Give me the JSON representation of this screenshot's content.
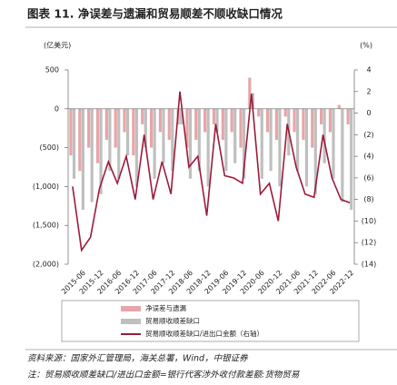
{
  "chart_data": {
    "type": "bar",
    "title": "图表 11. 净误差与遗漏和贸易顺差不顺收缺口情况",
    "y_label": "(亿美元)",
    "y2_label": "(%)",
    "categories": [
      null,
      "2015-06",
      null,
      "2015-12",
      null,
      "2016-06",
      null,
      "2016-12",
      null,
      "2017-06",
      null,
      "2017-12",
      null,
      "2018-06",
      null,
      "2018-12",
      null,
      "2019-06",
      null,
      "2019-12",
      null,
      "2020-06",
      null,
      "2020-12",
      null,
      "2021-06",
      null,
      "2021-12",
      null,
      "2022-06",
      null,
      "2022-12"
    ],
    "series": [
      {
        "name": "净误差与遗漏",
        "color": "#e6a5a8",
        "values": [
          -600,
          -800,
          -500,
          -700,
          -400,
          -500,
          -300,
          -600,
          -200,
          -500,
          -300,
          -400,
          -200,
          -500,
          -400,
          -300,
          -200,
          -400,
          -300,
          -500,
          400,
          -100,
          -300,
          -400,
          -100,
          -300,
          -400,
          -500,
          -200,
          -300,
          50,
          -200
        ]
      },
      {
        "name": "贸易顺收顺差缺口",
        "color": "#bfbfbf",
        "values": [
          -900,
          -1300,
          -1200,
          -1100,
          -800,
          -900,
          -600,
          -1000,
          -500,
          -900,
          -700,
          -800,
          -200,
          -900,
          -800,
          -1000,
          -300,
          -800,
          -700,
          -900,
          200,
          -900,
          -800,
          -1000,
          -600,
          -800,
          -1000,
          -1100,
          -700,
          -900,
          -1200,
          -1300
        ]
      },
      {
        "name": "贸易顺收顺差缺口/进出口金额（右轴）",
        "color": "#9b1b3b",
        "type": "line",
        "axis": "y2",
        "values": [
          -6.8,
          -12.7,
          -11.5,
          -7,
          -4.5,
          -6.5,
          -4,
          -8,
          -2,
          -8,
          -4.5,
          -7.5,
          2,
          -5,
          -4,
          -9.5,
          -1,
          -5.8,
          -6,
          -6.5,
          1.8,
          -7.5,
          -6.5,
          -10,
          -1,
          -5,
          -7.5,
          -7.8,
          -2,
          -6,
          -8,
          -8.3
        ]
      }
    ],
    "ylim": [
      -2000,
      500
    ],
    "yticks": [
      500,
      0,
      {
        "value": -500,
        "label": "(500)"
      },
      {
        "value": -1000,
        "label": "(1,000)"
      },
      {
        "value": -1500,
        "label": "(1,500)"
      },
      {
        "value": -2000,
        "label": "(2,000)"
      }
    ],
    "y2lim": [
      -14,
      4
    ],
    "y2ticks": [
      4,
      2,
      0,
      {
        "value": -2,
        "label": "(2)"
      },
      {
        "value": -4,
        "label": "(4)"
      },
      {
        "value": -6,
        "label": "(6)"
      },
      {
        "value": -8,
        "label": "(8)"
      },
      {
        "value": -10,
        "label": "(10)"
      },
      {
        "value": -12,
        "label": "(12)"
      },
      {
        "value": -14,
        "label": "(14)"
      }
    ],
    "source": "资料来源：国家外汇管理局，海关总署，Wind，中银证券",
    "note": "注：贸易顺收顺差缺口/进出口金额=银行代客涉外收付款差额:货物贸易"
  }
}
